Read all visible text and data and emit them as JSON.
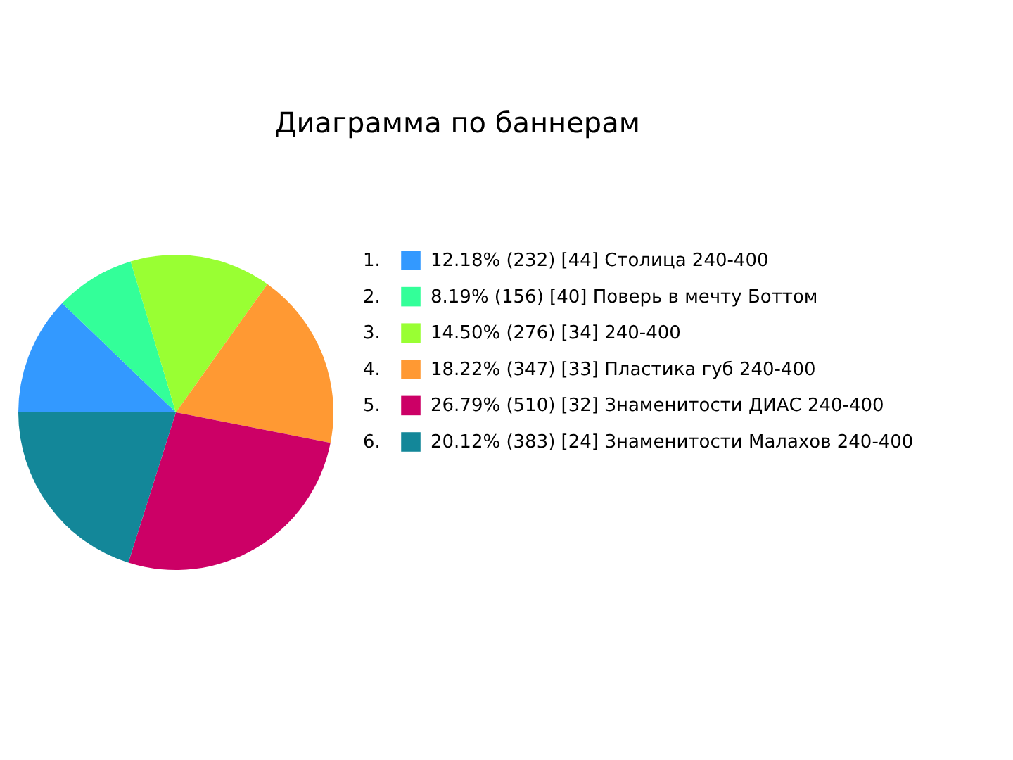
{
  "chart_data": {
    "type": "pie",
    "title": "Диаграмма по баннерам",
    "categories": [
      "12.18% (232) [44] Столица 240-400",
      "8.19% (156) [40] Поверь в мечту Боттом",
      "14.50% (276) [34] 240-400",
      "18.22% (347) [33] Пластика губ 240-400",
      "26.79% (510) [32] Знаменитости ДИАС 240-400",
      "20.12% (383) [24] Знаменитости Малахов 240-400"
    ],
    "values": [
      12.18,
      8.19,
      14.5,
      18.22,
      26.79,
      20.12
    ],
    "colors": [
      "#3399ff",
      "#33ff99",
      "#99ff33",
      "#ff9933",
      "#cc0066",
      "#138799"
    ],
    "annotations": [
      "1.",
      "2.",
      "3.",
      "4.",
      "5.",
      "6."
    ],
    "legend": "right"
  }
}
